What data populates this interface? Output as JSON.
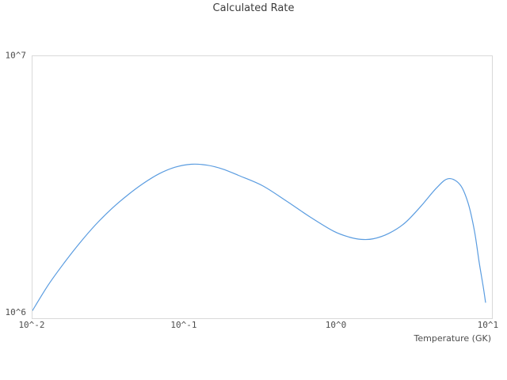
{
  "figure": {
    "title": "Calculated Rate"
  },
  "chart_data": {
    "type": "line",
    "title": "Calculated Rate",
    "xlabel": "Temperature (GK)",
    "ylabel": "",
    "x_scale": "log",
    "y_scale": "log",
    "xlim": [
      0.01,
      10.5
    ],
    "ylim": [
      1000000,
      10000000
    ],
    "grid": false,
    "legend": false,
    "line_color": "#5a9ce0",
    "x_ticks": [
      {
        "label": "10^-2",
        "value": 0.01
      },
      {
        "label": "10^-1",
        "value": 0.1
      },
      {
        "label": "10^0",
        "value": 1
      },
      {
        "label": "10^1",
        "value": 10
      }
    ],
    "y_ticks": [
      {
        "label": "10^6",
        "value": 1000000
      },
      {
        "label": "10^7",
        "value": 10000000
      }
    ],
    "series": [
      {
        "name": "calculated rate",
        "x": [
          0.01,
          0.0127,
          0.0162,
          0.0205,
          0.0261,
          0.0332,
          0.0422,
          0.0536,
          0.0681,
          0.0866,
          0.11,
          0.14,
          0.178,
          0.226,
          0.324,
          0.464,
          0.665,
          0.953,
          1.21,
          1.45,
          1.74,
          2.21,
          2.81,
          3.57,
          4.53,
          5.43,
          6.49,
          7.32,
          8.06,
          8.66,
          9.2,
          9.53
        ],
        "y": [
          1070000,
          1340000,
          1630000,
          1940000,
          2280000,
          2620000,
          2950000,
          3270000,
          3560000,
          3770000,
          3870000,
          3840000,
          3710000,
          3510000,
          3210000,
          2810000,
          2440000,
          2150000,
          2040000,
          2000000,
          2010000,
          2110000,
          2310000,
          2670000,
          3140000,
          3410000,
          3230000,
          2750000,
          2150000,
          1630000,
          1320000,
          1150000
        ]
      }
    ]
  },
  "colors": {
    "background": "#ffffff",
    "plot_border": "#d9d9d9",
    "line": "#5a9ce0",
    "title_text": "#3c3c3c",
    "tick_text": "#4d4d4d"
  }
}
